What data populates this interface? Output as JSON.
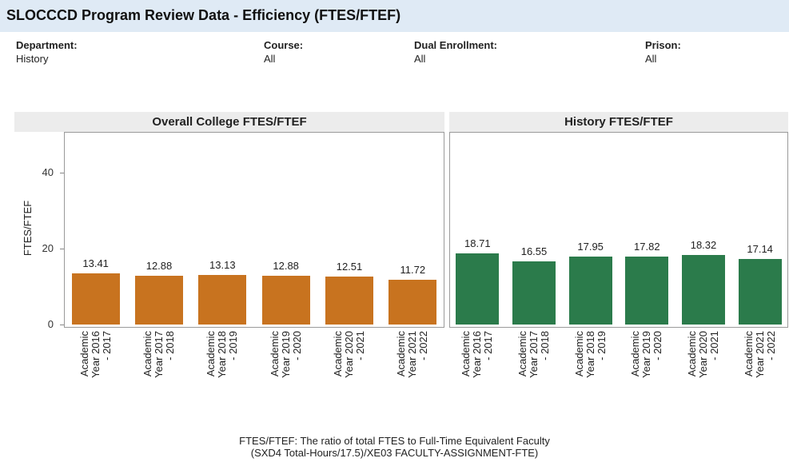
{
  "title": "SLOCCCD Program Review Data - Efficiency (FTES/FTEF)",
  "filters": [
    {
      "label": "Department:",
      "value": "History"
    },
    {
      "label": "Course:",
      "value": "All"
    },
    {
      "label": "Dual Enrollment:",
      "value": "All"
    },
    {
      "label": "Prison:",
      "value": "All"
    }
  ],
  "chart_data": [
    {
      "type": "bar",
      "title": "Overall College FTES/FTEF",
      "ylabel": "FTES/FTEF",
      "categories": [
        "Academic\nYear 2016\n- 2017",
        "Academic\nYear 2017\n- 2018",
        "Academic\nYear 2018\n- 2019",
        "Academic\nYear 2019\n- 2020",
        "Academic\nYear 2020\n- 2021",
        "Academic\nYear 2021\n- 2022"
      ],
      "values": [
        13.41,
        12.88,
        13.13,
        12.88,
        12.51,
        11.72
      ],
      "color": "#c8731f",
      "ylim": [
        0,
        50
      ],
      "yticks": [
        0,
        20,
        40
      ]
    },
    {
      "type": "bar",
      "title": "History FTES/FTEF",
      "categories": [
        "Academic\nYear 2016\n- 2017",
        "Academic\nYear 2017\n- 2018",
        "Academic\nYear 2018\n- 2019",
        "Academic\nYear 2019\n- 2020",
        "Academic\nYear 2020\n- 2021",
        "Academic\nYear 2021\n- 2022"
      ],
      "values": [
        18.71,
        16.55,
        17.95,
        17.82,
        18.32,
        17.14
      ],
      "color": "#2b7b4b",
      "ylim": [
        0,
        50
      ]
    }
  ],
  "footnote": [
    "FTES/FTEF: The ratio of total FTES to Full-Time Equivalent Faculty",
    "(SXD4 Total-Hours/17.5)/XE03 FACULTY-ASSIGNMENT-FTE)"
  ]
}
